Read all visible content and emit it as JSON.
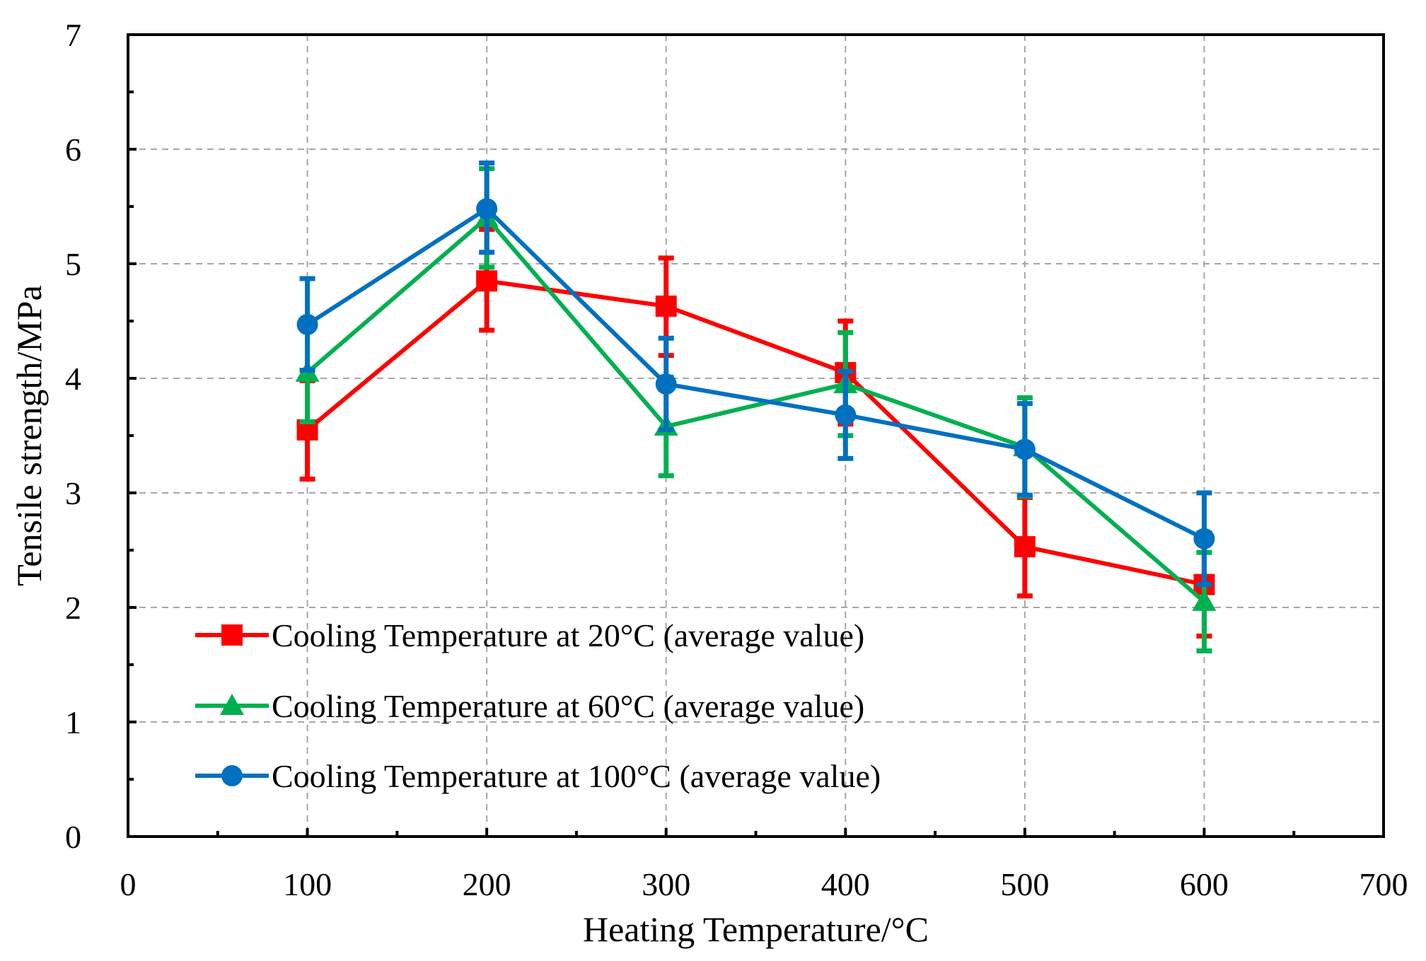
{
  "chart_data": {
    "type": "line",
    "title": "",
    "xlabel": "Heating Temperature/°C",
    "ylabel": "Tensile strength/MPa",
    "xlim": [
      0,
      700
    ],
    "ylim": [
      0,
      7
    ],
    "xticks": [
      0,
      100,
      200,
      300,
      400,
      500,
      600,
      700
    ],
    "yticks": [
      0,
      1,
      2,
      3,
      4,
      5,
      6,
      7
    ],
    "xtick_labels": [
      "0",
      "100",
      "200",
      "300",
      "400",
      "500",
      "600",
      "700"
    ],
    "ytick_labels": [
      "0",
      "1",
      "2",
      "3",
      "4",
      "5",
      "6",
      "7"
    ],
    "grid": true,
    "legend_position": "bottom-left",
    "x": [
      100,
      200,
      300,
      400,
      500,
      600
    ],
    "series": [
      {
        "name": "Cooling Temperature at 20°C (average value)",
        "color": "#ff0000",
        "marker": "square",
        "values": [
          3.55,
          4.85,
          4.63,
          4.05,
          2.53,
          2.2
        ],
        "error_low": [
          3.12,
          4.42,
          4.2,
          3.6,
          2.1,
          1.75
        ],
        "error_high": [
          3.98,
          5.3,
          5.05,
          4.5,
          2.96,
          2.65
        ]
      },
      {
        "name": "Cooling Temperature at 60°C (average value)",
        "color": "#00b050",
        "marker": "triangle",
        "values": [
          4.05,
          5.4,
          3.58,
          3.95,
          3.4,
          2.05
        ],
        "error_low": [
          3.62,
          4.97,
          3.15,
          3.5,
          2.97,
          1.62
        ],
        "error_high": [
          4.48,
          5.83,
          4.01,
          4.4,
          3.83,
          2.48
        ]
      },
      {
        "name": "Cooling Temperature at 100°C (average value)",
        "color": "#0070c0",
        "marker": "circle",
        "values": [
          4.47,
          5.48,
          3.95,
          3.68,
          3.38,
          2.6
        ],
        "error_low": [
          4.07,
          5.1,
          3.55,
          3.3,
          2.98,
          2.2
        ],
        "error_high": [
          4.87,
          5.88,
          4.35,
          4.06,
          3.78,
          3.0
        ]
      }
    ]
  }
}
